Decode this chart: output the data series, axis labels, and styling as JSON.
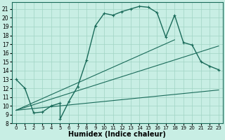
{
  "xlabel": "Humidex (Indice chaleur)",
  "bg_color": "#c8eee4",
  "line_color": "#1a6b5a",
  "grid_color": "#a0d4c4",
  "xlim": [
    -0.5,
    23.5
  ],
  "ylim": [
    8,
    21.8
  ],
  "xticks": [
    0,
    1,
    2,
    3,
    4,
    5,
    6,
    7,
    8,
    9,
    10,
    11,
    12,
    13,
    14,
    15,
    16,
    17,
    18,
    19,
    20,
    21,
    22,
    23
  ],
  "yticks": [
    8,
    9,
    10,
    11,
    12,
    13,
    14,
    15,
    16,
    17,
    18,
    19,
    20,
    21
  ],
  "curve1_x": [
    0,
    1,
    2,
    3,
    4,
    5,
    5,
    6,
    7,
    8,
    9,
    10,
    11,
    12,
    13,
    14,
    15,
    16,
    17,
    18,
    19,
    20,
    21,
    22,
    23
  ],
  "curve1_y": [
    13,
    12,
    9.2,
    9.3,
    10,
    10.3,
    8.5,
    10.5,
    12.2,
    15.2,
    19.1,
    20.5,
    20.3,
    20.7,
    21.0,
    21.3,
    21.2,
    20.6,
    17.8,
    20.3,
    17.2,
    16.9,
    15.0,
    14.5,
    14.1
  ],
  "line1_x": [
    0,
    23
  ],
  "line1_y": [
    9.5,
    11.8
  ],
  "line2_x": [
    0,
    18
  ],
  "line2_y": [
    9.5,
    17.5
  ],
  "line3_x": [
    0,
    23
  ],
  "line3_y": [
    9.5,
    16.8
  ]
}
